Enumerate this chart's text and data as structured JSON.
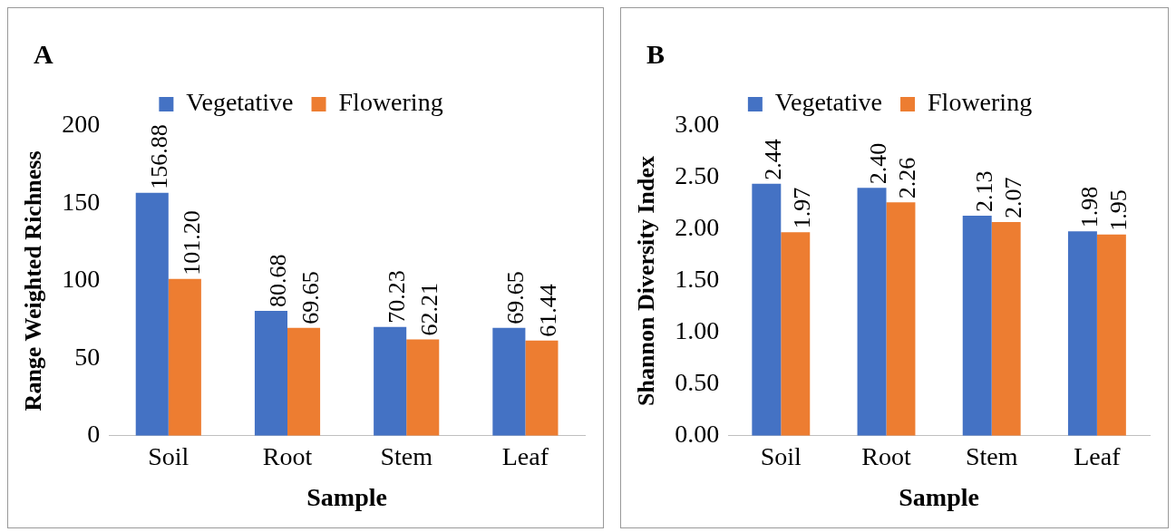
{
  "chart_data": [
    {
      "type": "bar",
      "title": "A",
      "xlabel": "Sample",
      "ylabel": "Range Weighted Richness",
      "categories": [
        "Soil",
        "Root",
        "Stem",
        "Leaf"
      ],
      "series": [
        {
          "name": "Vegetative",
          "color": "#4472c4",
          "values": [
            156.88,
            80.68,
            70.23,
            69.65
          ],
          "value_labels": [
            "156.88",
            "80.68",
            "70.23",
            "69.65"
          ]
        },
        {
          "name": "Flowering",
          "color": "#ed7d31",
          "values": [
            101.2,
            69.65,
            62.21,
            61.44
          ],
          "value_labels": [
            "101.20",
            "69.65",
            "62.21",
            "61.44"
          ]
        }
      ],
      "ylim": [
        0,
        200
      ],
      "yticks": [
        0,
        50,
        100,
        150,
        200
      ],
      "grid": false,
      "legend": "top"
    },
    {
      "type": "bar",
      "title": "B",
      "xlabel": "Sample",
      "ylabel": "Shannon Diversity Index",
      "categories": [
        "Soil",
        "Root",
        "Stem",
        "Leaf"
      ],
      "series": [
        {
          "name": "Vegetative",
          "color": "#4472c4",
          "values": [
            2.44,
            2.4,
            2.13,
            1.98
          ],
          "value_labels": [
            "2.44",
            "2.40",
            "2.13",
            "1.98"
          ]
        },
        {
          "name": "Flowering",
          "color": "#ed7d31",
          "values": [
            1.97,
            2.26,
            2.07,
            1.95
          ],
          "value_labels": [
            "1.97",
            "2.26",
            "2.07",
            "1.95"
          ]
        }
      ],
      "ylim": [
        0,
        3
      ],
      "yticks": [
        {
          "value": 0,
          "label": "0.00"
        },
        {
          "value": 0.5,
          "label": "0.50"
        },
        {
          "value": 1,
          "label": "1.00"
        },
        {
          "value": 1.5,
          "label": "1.50"
        },
        {
          "value": 2,
          "label": "2.00"
        },
        {
          "value": 2.5,
          "label": "2.50"
        },
        {
          "value": 3,
          "label": "3.00"
        }
      ],
      "grid": false,
      "legend": "top"
    }
  ]
}
